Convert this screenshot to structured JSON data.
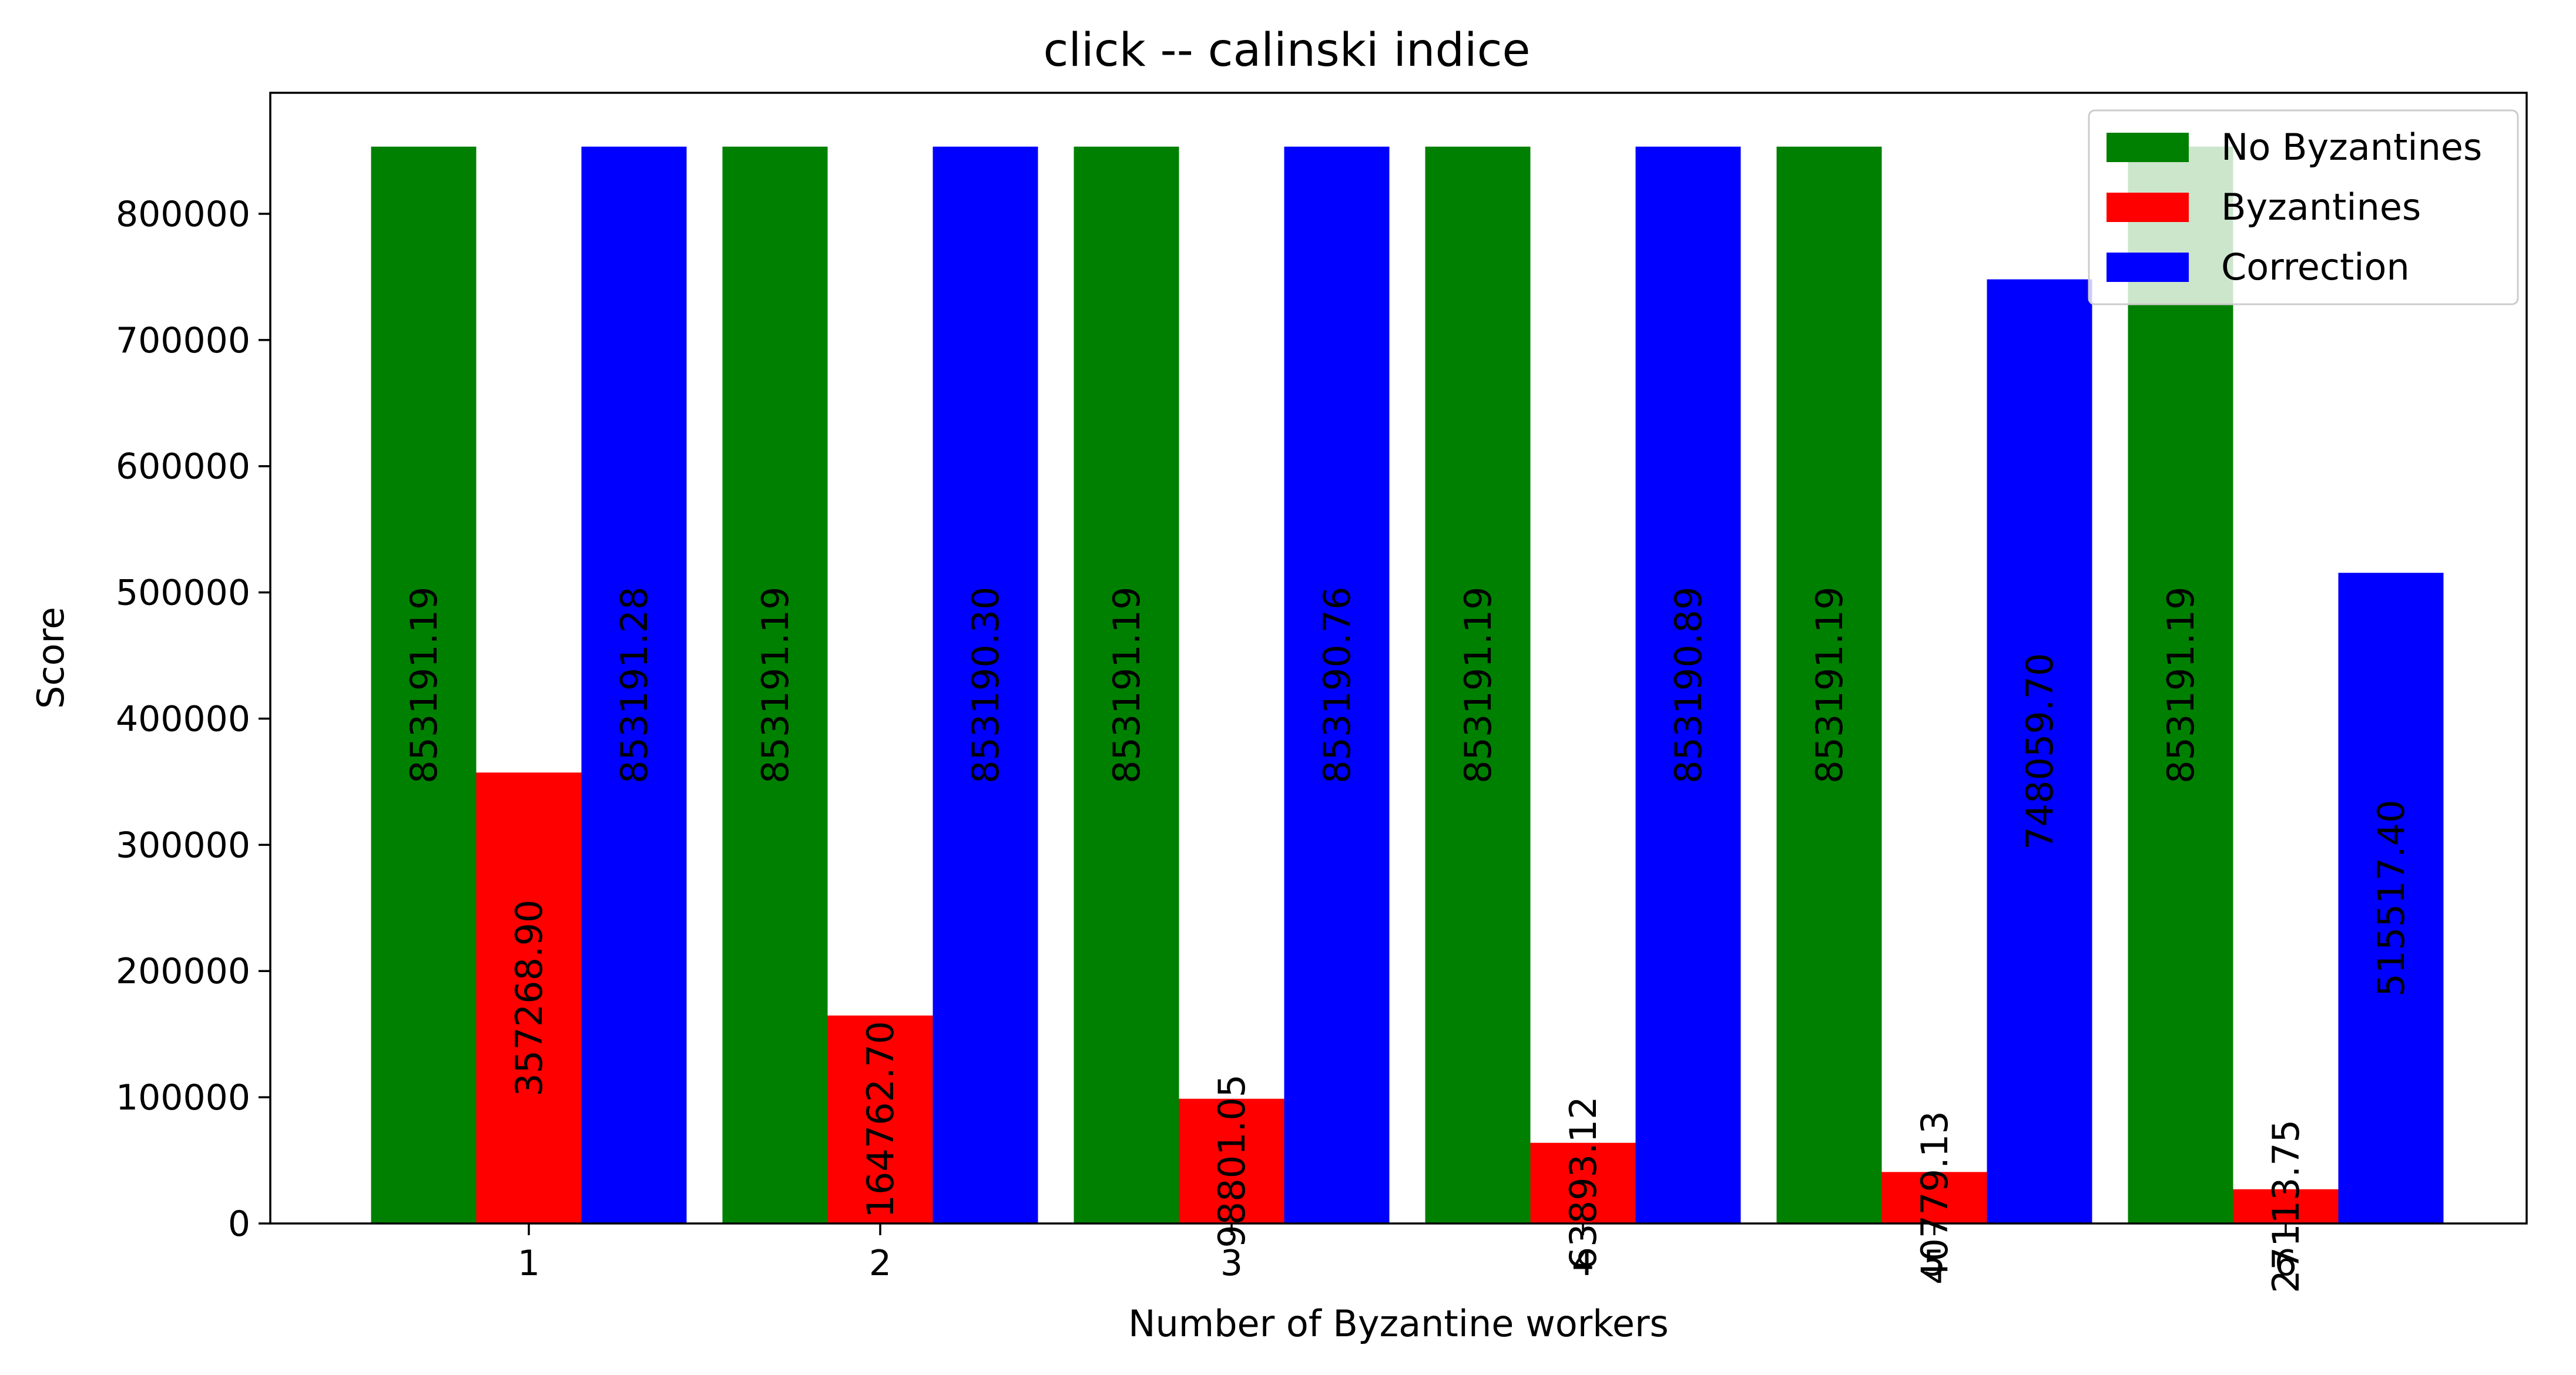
{
  "chart_data": {
    "type": "bar",
    "title": "click -- calinski indice",
    "xlabel": "Number of Byzantine workers",
    "ylabel": "Score",
    "categories": [
      "1",
      "2",
      "3",
      "4",
      "5",
      "6"
    ],
    "ylim": [
      0,
      895850
    ],
    "yticks": [
      0,
      100000,
      200000,
      300000,
      400000,
      500000,
      600000,
      700000,
      800000
    ],
    "ytick_labels": [
      "0",
      "100000",
      "200000",
      "300000",
      "400000",
      "500000",
      "600000",
      "700000",
      "800000"
    ],
    "grid": false,
    "legend_position": "top-right",
    "series": [
      {
        "name": "No Byzantines",
        "color": "#008000",
        "values": [
          853191.19,
          853191.19,
          853191.19,
          853191.19,
          853191.19,
          853191.19
        ],
        "labels": [
          "853191.19",
          "853191.19",
          "853191.19",
          "853191.19",
          "853191.19",
          "853191.19"
        ]
      },
      {
        "name": "Byzantines",
        "color": "#ff0000",
        "values": [
          357268.9,
          164762.7,
          98801.05,
          63893.12,
          40779.13,
          27113.75
        ],
        "labels": [
          "357268.90",
          "164762.70",
          "98801.05",
          "63893.12",
          "40779.13",
          "27113.75"
        ]
      },
      {
        "name": "Correction",
        "color": "#0000ff",
        "values": [
          853191.28,
          853190.3,
          853190.76,
          853190.89,
          748059.7,
          515517.4
        ],
        "labels": [
          "853191.28",
          "853190.30",
          "853190.76",
          "853190.89",
          "748059.70",
          "515517.40"
        ]
      }
    ]
  }
}
